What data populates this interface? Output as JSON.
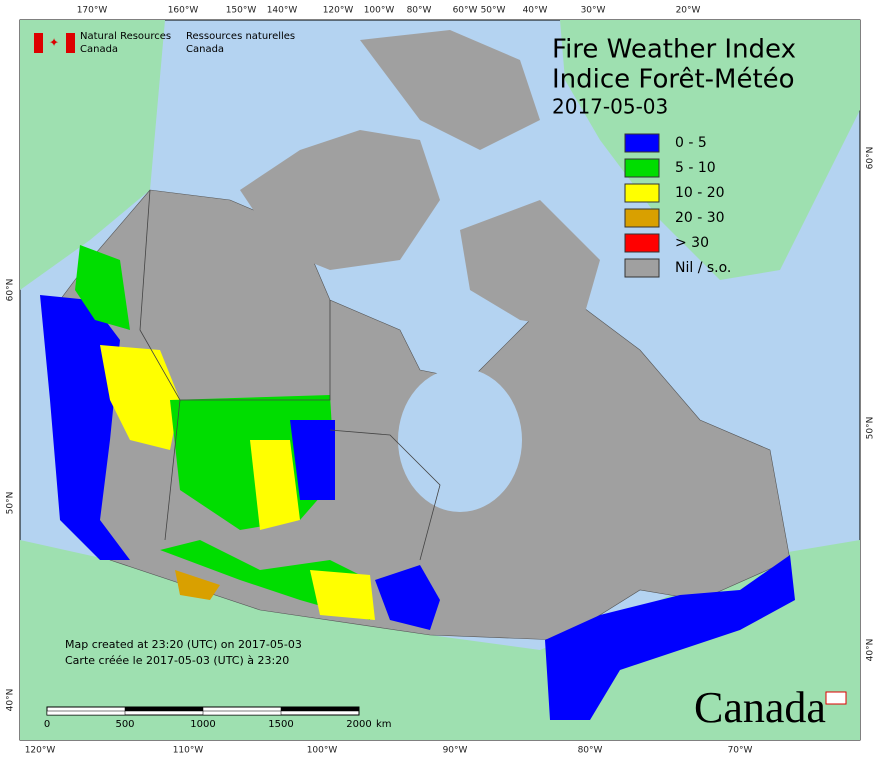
{
  "header": {
    "org_en": [
      "Natural Resources",
      "Canada"
    ],
    "org_fr": [
      "Ressources naturelles",
      "Canada"
    ],
    "title_en": "Fire Weather Index",
    "title_fr": "Indice Forêt-Météo",
    "date": "2017-05-03"
  },
  "legend": [
    {
      "label": "0 - 5",
      "color": "#0000ff"
    },
    {
      "label": "5 - 10",
      "color": "#00dd00"
    },
    {
      "label": "10 - 20",
      "color": "#ffff00"
    },
    {
      "label": "20 - 30",
      "color": "#d9a000"
    },
    {
      "label": "> 30",
      "color": "#ff0000"
    },
    {
      "label": "Nil / s.o.",
      "color": "#a0a0a0"
    }
  ],
  "credits": [
    "Map created at 23:20 (UTC) on 2017-05-03",
    "Carte créée le 2017-05-03 (UTC) à 23:20"
  ],
  "scale": {
    "labels": [
      "0",
      "500",
      "1000",
      "1500",
      "2000"
    ],
    "unit": "km"
  },
  "wordmark": "Canada",
  "graticule": {
    "top": [
      "170°W",
      "160°W",
      "150°W",
      "140°W",
      "120°W",
      "100°W",
      "80°W",
      "60°W",
      "50°W",
      "40°W",
      "30°W",
      "20°W"
    ],
    "bottom": [
      "120°W",
      "110°W",
      "100°W",
      "90°W",
      "80°W",
      "70°W"
    ],
    "left": [
      "60°N",
      "50°N",
      "40°N"
    ],
    "right": [
      "60°N",
      "50°N",
      "40°N"
    ]
  }
}
